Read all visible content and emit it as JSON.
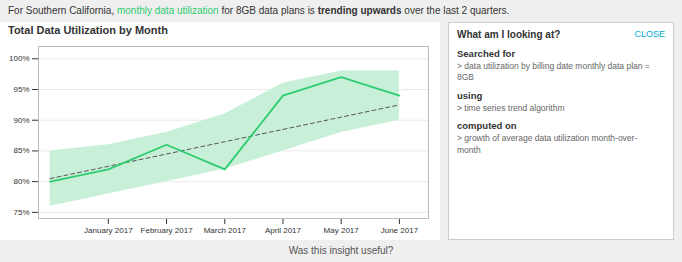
{
  "chart_data": {
    "type": "line",
    "title": "Total Data Utilization by Month",
    "subtitle": [
      "For Southern California, ",
      "monthly data utilization",
      " for 8GB data plans is ",
      "trending upwards",
      " over the last 2 quarters."
    ],
    "x": [
      0,
      1,
      2,
      3,
      4,
      5,
      6
    ],
    "series": [
      {
        "values": [
          80.5,
          82.5,
          84.5,
          86.5,
          88.5,
          90.5,
          92.5
        ],
        "color": "#555555",
        "line_style": "dashed"
      },
      {
        "values": [
          80,
          82,
          86,
          82,
          94,
          97,
          94
        ],
        "color": "#2ecc71",
        "line_style": "solid"
      }
    ],
    "band": {
      "upper": [
        85,
        86,
        88,
        91,
        96,
        98,
        98
      ],
      "lower": [
        76,
        78,
        80,
        82,
        85,
        88,
        90
      ],
      "color": "#c8f0d8"
    },
    "xlim": [
      -0.2,
      6.5
    ],
    "xticks": [
      {
        "value": 1,
        "label": "January 2017"
      },
      {
        "value": 2,
        "label": "February 2017"
      },
      {
        "value": 3,
        "label": "March 2017"
      },
      {
        "value": 4,
        "label": "April 2017"
      },
      {
        "value": 5,
        "label": "May 2017"
      },
      {
        "value": 6,
        "label": "June 2017"
      }
    ],
    "ylim": [
      74,
      102
    ],
    "yticks": [
      {
        "value": 75,
        "label": "75%"
      },
      {
        "value": 80,
        "label": "80%"
      },
      {
        "value": 85,
        "label": "85%"
      },
      {
        "value": 90,
        "label": "90%"
      },
      {
        "value": 95,
        "label": "95%"
      },
      {
        "value": 100,
        "label": "100%"
      }
    ],
    "grid": true,
    "annotations": [
      "What am I looking at?",
      "CLOSE",
      "Searched for",
      "> data utilization by billing date monthly data plan =\n8GB",
      "using",
      "> time series trend algorithm",
      "computed on",
      "> growth of average data utilization month-over-\nmonth",
      "Was this insight useful?"
    ]
  }
}
